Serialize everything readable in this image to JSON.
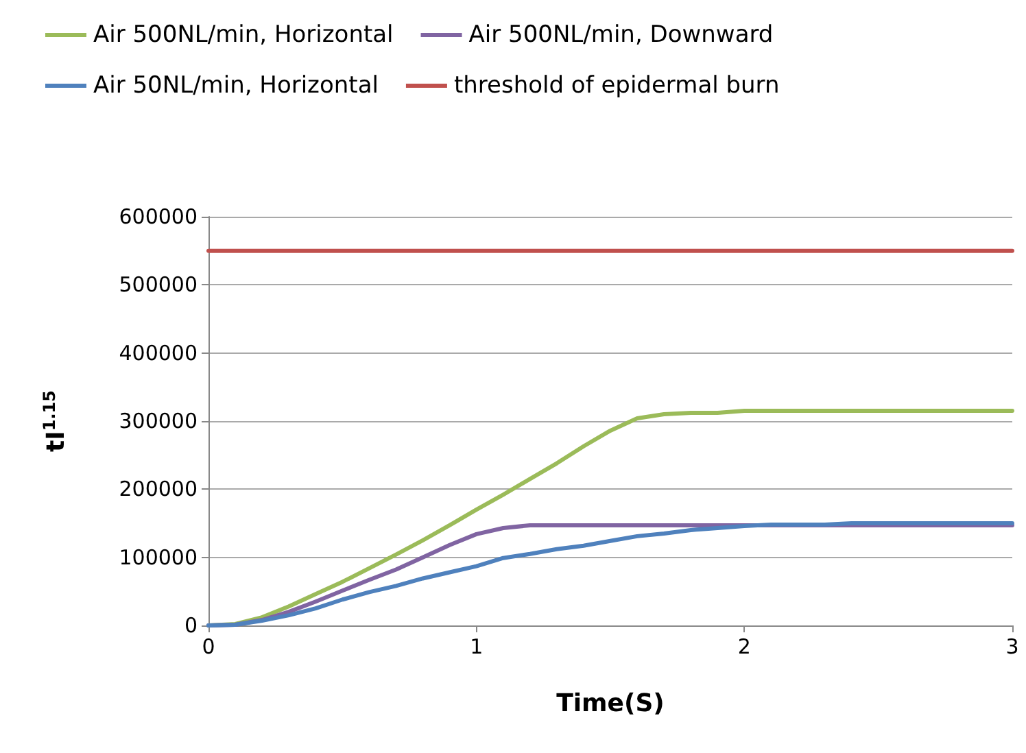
{
  "chart_data": {
    "type": "line",
    "xlabel": "Time(S)",
    "ylabel": "tI$^{1.15}$",
    "xlim": [
      0,
      3
    ],
    "xticks": [
      0,
      1,
      2,
      3
    ],
    "ylim": [
      0,
      600000
    ],
    "yticks": [
      0,
      100000,
      200000,
      300000,
      400000,
      500000,
      600000
    ],
    "grid": "y",
    "legend": "top",
    "marker": "none",
    "line_style": "solid",
    "series": [
      {
        "name": "Air 500NL/min, Horizontal",
        "color": "#9bbb59",
        "x": [
          0,
          0.1,
          0.2,
          0.3,
          0.4,
          0.5,
          0.6,
          0.7,
          0.8,
          0.9,
          1.0,
          1.1,
          1.2,
          1.3,
          1.4,
          1.5,
          1.6,
          1.7,
          1.8,
          1.9,
          2.0,
          2.5,
          3.0
        ],
        "values": [
          0,
          2000,
          12000,
          28000,
          46000,
          64000,
          84000,
          104000,
          125000,
          147000,
          170000,
          192000,
          215000,
          238000,
          263000,
          286000,
          304000,
          310000,
          312000,
          312000,
          315000,
          315000,
          315000
        ]
      },
      {
        "name": "Air 500NL/min, Downward",
        "color": "#8064a2",
        "x": [
          0,
          0.1,
          0.2,
          0.3,
          0.4,
          0.5,
          0.6,
          0.7,
          0.8,
          0.9,
          1.0,
          1.1,
          1.2,
          2.0,
          3.0
        ],
        "values": [
          0,
          1000,
          8000,
          20000,
          35000,
          51000,
          67000,
          82000,
          100000,
          118000,
          134000,
          143000,
          147000,
          147000,
          147000
        ]
      },
      {
        "name": "Air 50NL/min, Horizontal",
        "color": "#4f81bd",
        "x": [
          0,
          0.1,
          0.2,
          0.3,
          0.4,
          0.5,
          0.6,
          0.7,
          0.8,
          0.9,
          1.0,
          1.1,
          1.2,
          1.3,
          1.4,
          1.5,
          1.6,
          1.7,
          1.8,
          1.9,
          2.0,
          2.1,
          2.2,
          2.3,
          2.4,
          3.0
        ],
        "values": [
          0,
          1000,
          7000,
          15000,
          25000,
          38000,
          49000,
          58000,
          69000,
          78000,
          87000,
          99000,
          105000,
          112000,
          117000,
          124000,
          131000,
          135000,
          140000,
          143000,
          146000,
          148000,
          148000,
          148000,
          150000,
          150000
        ]
      },
      {
        "name": "threshold of epidermal burn",
        "color": "#c0504d",
        "x": [
          0,
          3
        ],
        "values": [
          550000,
          550000
        ]
      }
    ]
  }
}
